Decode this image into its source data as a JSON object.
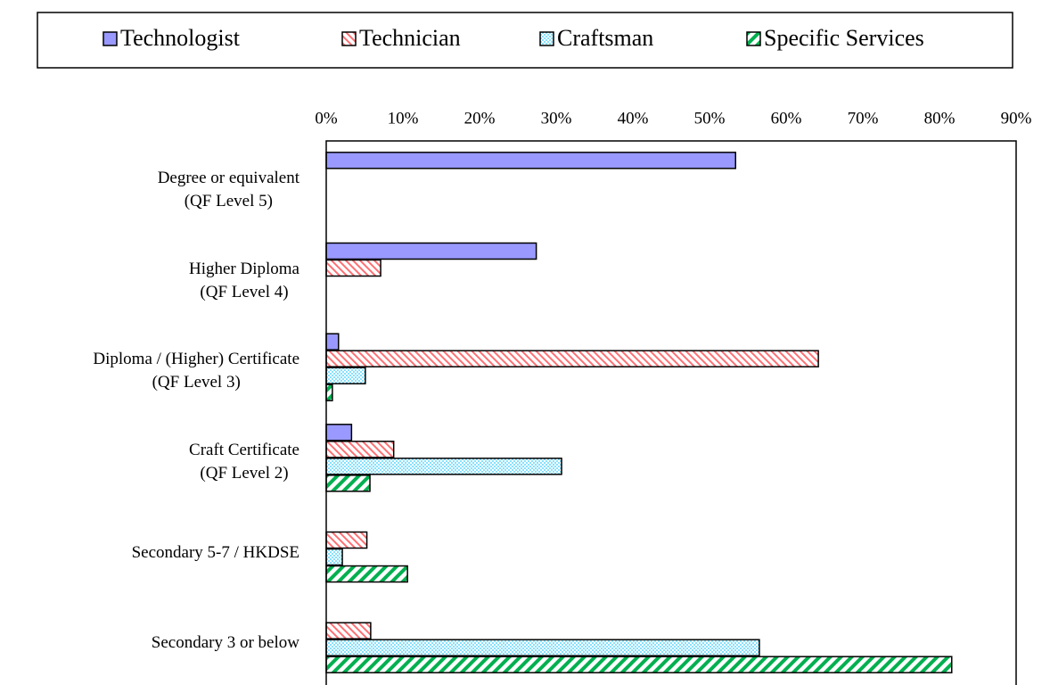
{
  "chart_data": {
    "type": "hbar",
    "categories": [
      "Degree or equivalent\n(QF Level 5)",
      "Higher Diploma\n(QF Level 4)",
      "Diploma / (Higher) Certificate\n(QF Level 3)",
      "Craft Certificate\n(QF Level 2)",
      "Secondary 5-7 / HKDSE",
      "Secondary 3 or below"
    ],
    "series": [
      {
        "name": "Technologist",
        "color": "#9999ff",
        "pattern": "solid",
        "values": [
          53.4,
          27.4,
          1.6,
          3.3,
          0,
          0
        ]
      },
      {
        "name": "Technician",
        "color": "#ff6f73",
        "pattern": "diagonal",
        "values": [
          0,
          7.1,
          64.2,
          8.8,
          5.3,
          5.8
        ]
      },
      {
        "name": "Craftsman",
        "color": "#33ccff",
        "pattern": "dots",
        "values": [
          0,
          0,
          5.1,
          30.7,
          2.1,
          56.5
        ]
      },
      {
        "name": "Specific Services",
        "color": "#00b050",
        "pattern": "stripes",
        "values": [
          0,
          0,
          0.8,
          5.7,
          10.6,
          81.6
        ]
      }
    ],
    "xlim": [
      0,
      90
    ],
    "xticks": [
      {
        "value": 0,
        "label": "0%"
      },
      {
        "value": 10,
        "label": "10%"
      },
      {
        "value": 20,
        "label": "20%"
      },
      {
        "value": 30,
        "label": "30%"
      },
      {
        "value": 40,
        "label": "40%"
      },
      {
        "value": 50,
        "label": "50%"
      },
      {
        "value": 60,
        "label": "60%"
      },
      {
        "value": 70,
        "label": "70%"
      },
      {
        "value": 80,
        "label": "80%"
      },
      {
        "value": 90,
        "label": "90%"
      }
    ],
    "legend": "top"
  }
}
